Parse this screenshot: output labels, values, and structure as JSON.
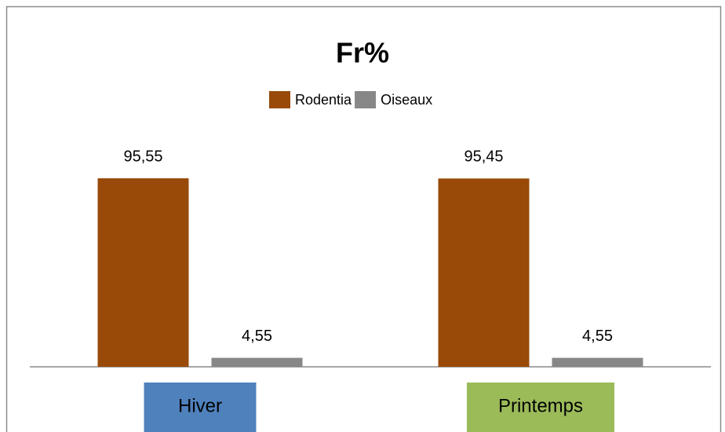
{
  "chart_data": {
    "type": "bar",
    "title": "Fr%",
    "categories": [
      "Hiver",
      "Printemps"
    ],
    "category_colors": [
      "#4f81bd",
      "#9bbb59"
    ],
    "series": [
      {
        "name": "Rodentia",
        "color": "#994a08",
        "values": [
          95.55,
          95.45
        ],
        "value_labels": [
          "95,55",
          "95,45"
        ]
      },
      {
        "name": "Oiseaux",
        "color": "#878787",
        "values": [
          4.55,
          4.55
        ],
        "value_labels": [
          "4,55",
          "4,55"
        ]
      }
    ]
  }
}
